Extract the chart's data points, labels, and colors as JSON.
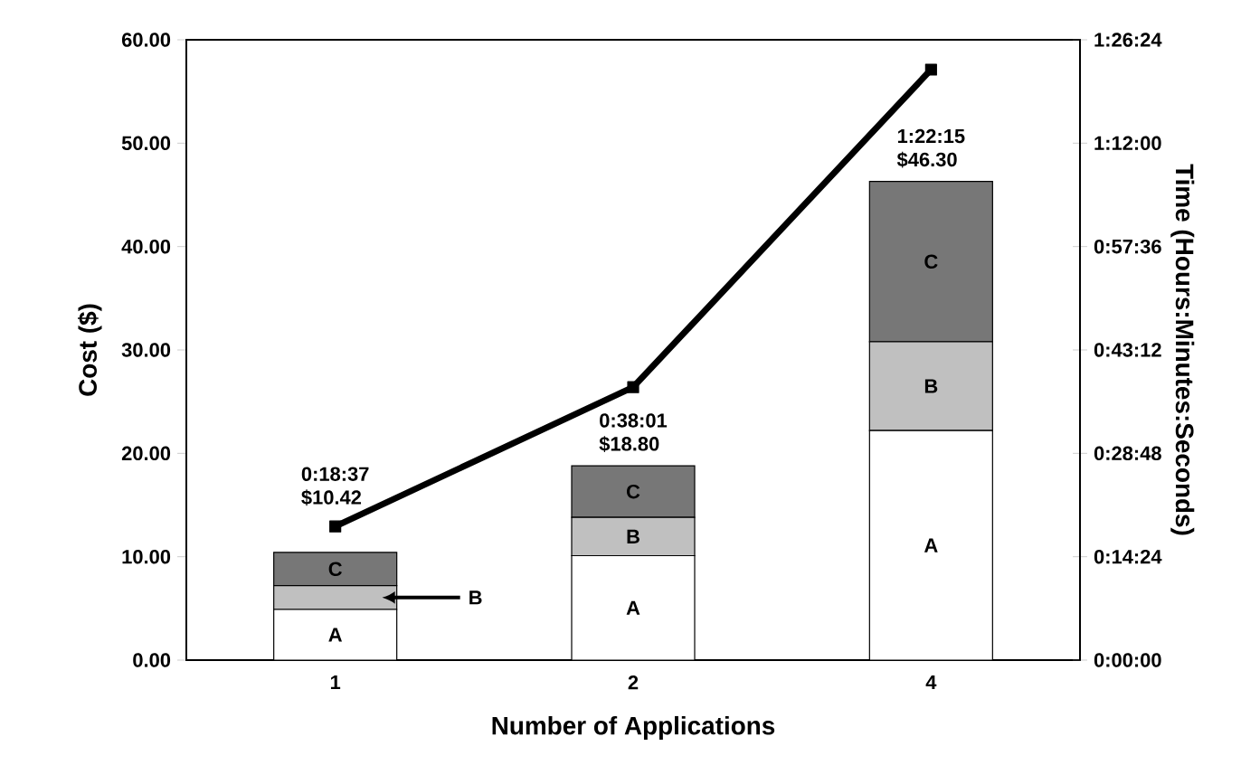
{
  "chart_data": {
    "type": "bar",
    "stacked": true,
    "xlabel": "Number of Applications",
    "ylabel": "Cost ($)",
    "y2label": "Time (Hours:Minutes:Seconds)",
    "categories": [
      "1",
      "2",
      "4"
    ],
    "series": [
      {
        "name": "A",
        "color": "#ffffff",
        "values": [
          4.9,
          10.1,
          22.2
        ]
      },
      {
        "name": "B",
        "color": "#c0c0c0",
        "values": [
          2.3,
          3.7,
          8.6
        ]
      },
      {
        "name": "C",
        "color": "#777777",
        "values": [
          3.22,
          5.0,
          15.5
        ]
      },
      {
        "type": "line",
        "axis": "y2",
        "color": "#000000",
        "marker": "square",
        "values": [
          0.3103,
          0.6336,
          1.3708
        ],
        "value_labels": [
          "0:18:37",
          "0:38:01",
          "1:22:15"
        ]
      }
    ],
    "totals": [
      "$10.42",
      "$18.80",
      "$46.30"
    ],
    "ylim": [
      0,
      60
    ],
    "yticks": [
      {
        "value": 0,
        "label": "0.00"
      },
      {
        "value": 10,
        "label": "10.00"
      },
      {
        "value": 20,
        "label": "20.00"
      },
      {
        "value": 30,
        "label": "30.00"
      },
      {
        "value": 40,
        "label": "40.00"
      },
      {
        "value": 50,
        "label": "50.00"
      },
      {
        "value": 60,
        "label": "60.00"
      }
    ],
    "y2lim": [
      0,
      1.44
    ],
    "y2ticks": [
      {
        "value": 0,
        "label": "0:00:00"
      },
      {
        "value": 0.24,
        "label": "0:14:24"
      },
      {
        "value": 0.48,
        "label": "0:28:48"
      },
      {
        "value": 0.72,
        "label": "0:43:12"
      },
      {
        "value": 0.96,
        "label": "0:57:36"
      },
      {
        "value": 1.2,
        "label": "1:12:00"
      },
      {
        "value": 1.44,
        "label": "1:26:24"
      }
    ]
  }
}
